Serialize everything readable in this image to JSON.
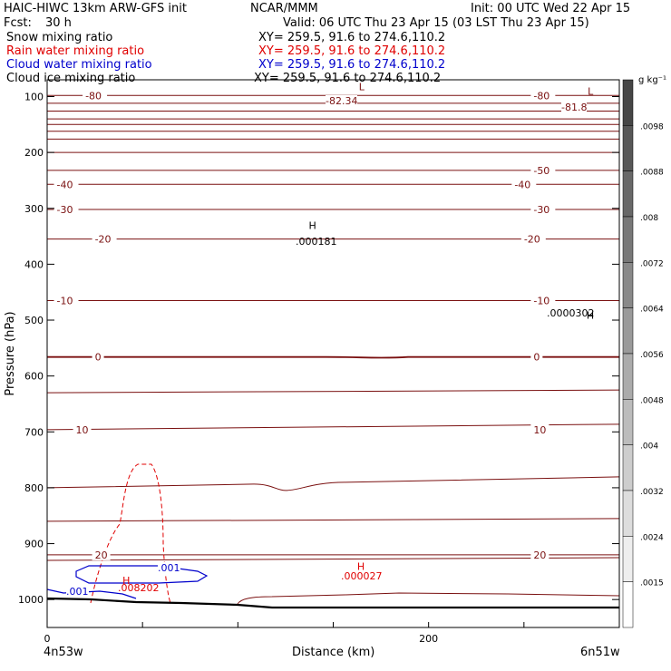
{
  "header": {
    "title": "HAIC-HIWC 13km ARW-GFS init",
    "org": "NCAR/MMM",
    "init": "Init: 00 UTC Wed 22 Apr 15",
    "fcst_label": "Fcst:",
    "fcst_value": "30 h",
    "valid": "Valid: 06 UTC Thu 23 Apr 15 (03 LST Thu 23 Apr 15)"
  },
  "fields": [
    {
      "name": "Snow mixing ratio",
      "xy": "XY= 259.5, 91.6 to 274.6,110.2",
      "color": "#000000"
    },
    {
      "name": "Rain water mixing ratio",
      "xy": "XY= 259.5, 91.6 to 274.6,110.2",
      "color": "#e00000"
    },
    {
      "name": "Cloud water mixing ratio",
      "xy": "XY= 259.5, 91.6 to 274.6,110.2",
      "color": "#0000cc"
    },
    {
      "name": "Cloud ice mixing ratio",
      "xy": "XY= 259.5, 91.6 to 274.6,110.2",
      "color": "#000000"
    }
  ],
  "chart_data": {
    "type": "contour_cross_section",
    "xlabel": "Distance (km)",
    "ylabel": "Pressure (hPa)",
    "xlim": [
      0,
      300
    ],
    "ylim": [
      1050,
      70
    ],
    "x_ticks": [
      0,
      200
    ],
    "y_ticks": [
      100,
      200,
      300,
      400,
      500,
      600,
      700,
      800,
      900,
      1000
    ],
    "x_endpoints": [
      "4n53w",
      "6n51w"
    ],
    "colorbar": {
      "unit": "g kg⁻¹",
      "labels": [
        ".0098",
        ".0088",
        ".008",
        ".0072",
        ".0064",
        ".0056",
        ".0048",
        ".004",
        ".0032",
        ".0024",
        ".0015"
      ]
    },
    "temperature_contours": {
      "color": "#7a1010",
      "levels": [
        {
          "p": 98,
          "label": "-80",
          "labels_x": [
            20,
            255
          ]
        },
        {
          "p": 232,
          "label": "-50",
          "labels_x": [
            255
          ]
        },
        {
          "p": 257,
          "label": "-40",
          "labels_x": [
            5,
            245
          ]
        },
        {
          "p": 302,
          "label": "-30",
          "labels_x": [
            5,
            255
          ]
        },
        {
          "p": 355,
          "label": "-20",
          "labels_x": [
            25,
            250
          ]
        },
        {
          "p": 465,
          "label": "-10",
          "labels_x": [
            5,
            255
          ]
        },
        {
          "p": 566,
          "label": "0",
          "labels_x": [
            25,
            255
          ]
        },
        {
          "p": 696,
          "label": "10",
          "labels_x": [
            15,
            255
          ]
        },
        {
          "p": 920,
          "label": "20",
          "labels_x": [
            25,
            255
          ]
        }
      ],
      "extremes": [
        {
          "type": "L",
          "label": "-82.34",
          "x": 162,
          "p": 82
        },
        {
          "type": "L",
          "label": "-81.8",
          "x": 282,
          "p": 90
        }
      ]
    },
    "snow": {
      "highs": [
        {
          "label": ".000181",
          "x": 140,
          "p": 342
        },
        {
          "label": ".0000302",
          "x": 280,
          "p": 502
        }
      ]
    },
    "rain": {
      "contour_level": ".0015",
      "highs": [
        {
          "label": ".008202",
          "x": 40,
          "p": 985
        },
        {
          "label": ".000027",
          "x": 163,
          "p": 960
        }
      ]
    },
    "cloud_water": {
      "labels": [
        ".001",
        ".001"
      ]
    }
  }
}
